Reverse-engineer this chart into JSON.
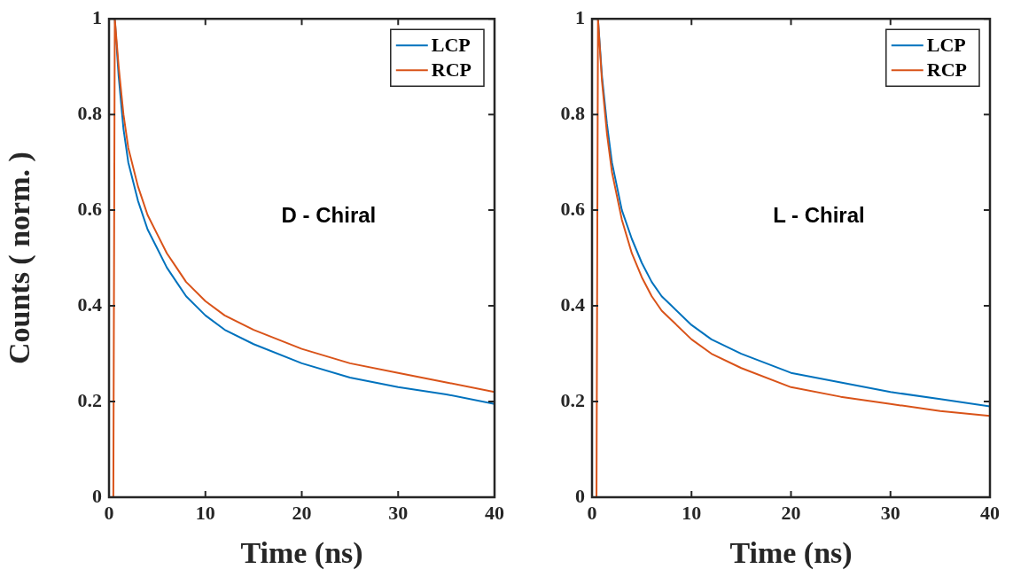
{
  "chart_data": [
    {
      "type": "line",
      "xlabel": "Time (ns)",
      "ylabel": "Counts ( norm. )",
      "annotations": [
        "D - Chiral"
      ],
      "x": [
        0,
        0.45,
        0.6,
        1,
        1.5,
        2,
        3,
        4,
        5,
        6,
        7,
        8,
        10,
        12,
        15,
        20,
        25,
        30,
        35,
        40
      ],
      "series": [
        {
          "name": "LCP",
          "color": "#0072bd",
          "values": [
            null,
            null,
            1,
            0.88,
            0.77,
            0.7,
            0.62,
            0.56,
            0.52,
            0.48,
            0.45,
            0.42,
            0.38,
            0.35,
            0.32,
            0.28,
            0.25,
            0.23,
            0.215,
            0.195
          ]
        },
        {
          "name": "RCP",
          "color": "#d95319",
          "values": [
            0,
            0,
            1,
            0.9,
            0.8,
            0.73,
            0.65,
            0.59,
            0.55,
            0.51,
            0.48,
            0.45,
            0.41,
            0.38,
            0.35,
            0.31,
            0.28,
            0.26,
            0.24,
            0.22
          ]
        }
      ],
      "xlim": [
        0,
        40
      ],
      "xticks": [
        0,
        10,
        20,
        30,
        40
      ],
      "ylim": [
        0,
        1
      ],
      "yticks": [
        0,
        0.2,
        0.4,
        0.6,
        0.8,
        1
      ],
      "legend": "top right",
      "grid": false
    },
    {
      "type": "line",
      "xlabel": "Time (ns)",
      "annotations": [
        "L - Chiral"
      ],
      "x": [
        0,
        0.45,
        0.6,
        1,
        1.5,
        2,
        3,
        4,
        5,
        6,
        7,
        8,
        10,
        12,
        15,
        20,
        25,
        30,
        35,
        40
      ],
      "series": [
        {
          "name": "LCP",
          "color": "#0072bd",
          "values": [
            null,
            null,
            1,
            0.88,
            0.78,
            0.7,
            0.6,
            0.54,
            0.49,
            0.45,
            0.42,
            0.4,
            0.36,
            0.33,
            0.3,
            0.26,
            0.24,
            0.22,
            0.205,
            0.19
          ]
        },
        {
          "name": "RCP",
          "color": "#d95319",
          "values": [
            0,
            0,
            1,
            0.87,
            0.76,
            0.68,
            0.58,
            0.51,
            0.46,
            0.42,
            0.39,
            0.37,
            0.33,
            0.3,
            0.27,
            0.23,
            0.21,
            0.195,
            0.18,
            0.17
          ]
        }
      ],
      "xlim": [
        0,
        40
      ],
      "xticks": [
        0,
        10,
        20,
        30,
        40
      ],
      "ylim": [
        0,
        1
      ],
      "yticks": [
        0,
        0.2,
        0.4,
        0.6,
        0.8,
        1
      ],
      "legend": "top right",
      "grid": false
    }
  ]
}
